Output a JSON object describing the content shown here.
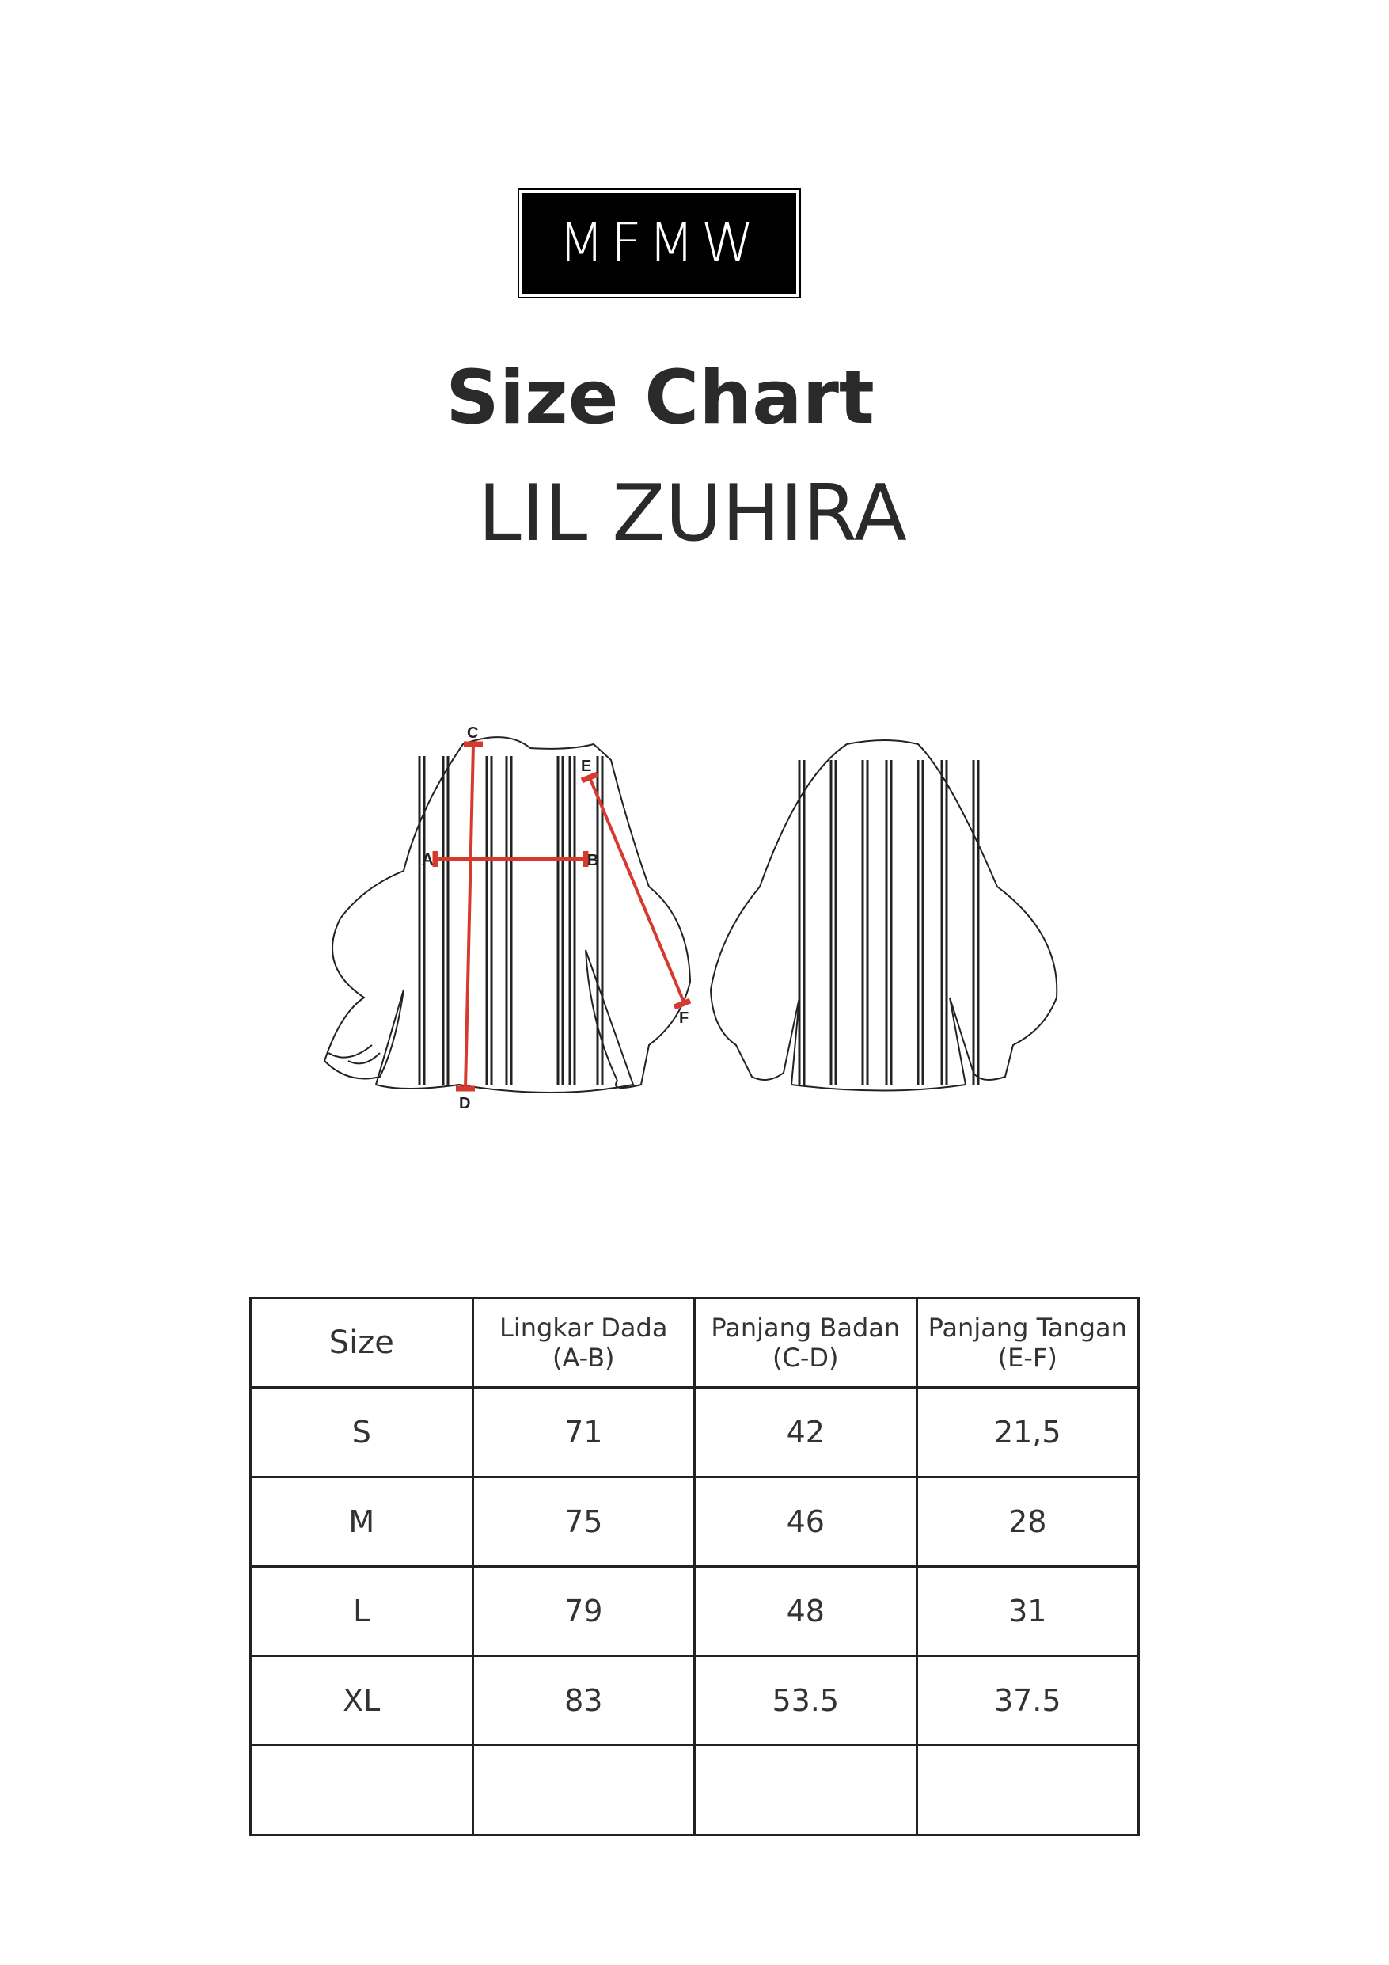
{
  "brand": {
    "logo_text": "MFMW"
  },
  "title": "Size Chart",
  "product_name": "LIL ZUHIRA",
  "diagram": {
    "markers": {
      "a": "A",
      "b": "B",
      "c": "C",
      "d": "D",
      "e": "E",
      "f": "F"
    },
    "measure_color": "#d63a2f"
  },
  "table": {
    "headers": [
      {
        "label": "Size",
        "sub": ""
      },
      {
        "label": "Lingkar Dada",
        "sub": "(A-B)"
      },
      {
        "label": "Panjang Badan",
        "sub": "(C-D)"
      },
      {
        "label": "Panjang Tangan",
        "sub": "(E-F)"
      }
    ],
    "rows": [
      [
        "S",
        "71",
        "42",
        "21,5"
      ],
      [
        "M",
        "75",
        "46",
        "28"
      ],
      [
        "L",
        "79",
        "48",
        "31"
      ],
      [
        "XL",
        "83",
        "53.5",
        "37.5"
      ],
      [
        "",
        "",
        "",
        ""
      ]
    ]
  }
}
